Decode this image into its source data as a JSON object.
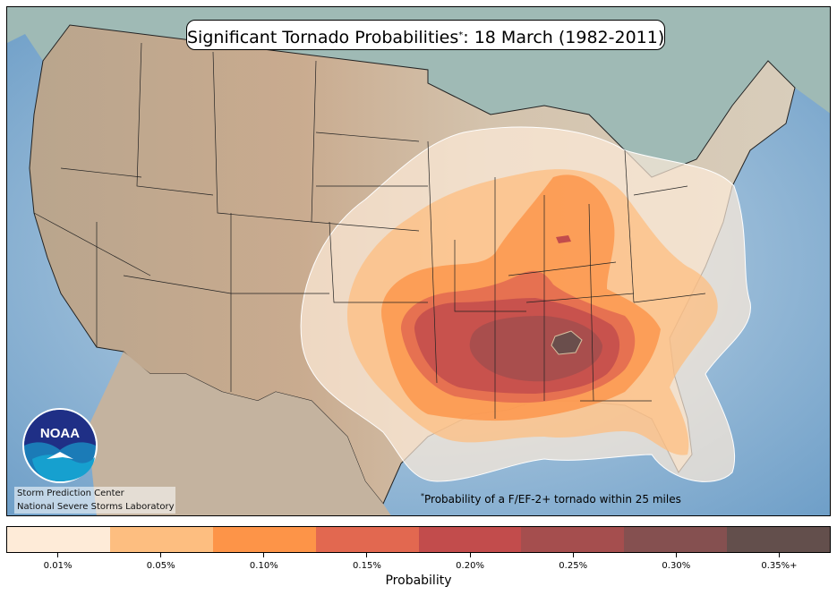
{
  "title": {
    "main": "Significant Tornado Probabilities",
    "marker": "*",
    "date_part": ": 18 March (1982-2011)"
  },
  "credits": {
    "line1": "Storm Prediction Center",
    "line2": "National Severe Storms Laboratory"
  },
  "logo": {
    "text": "NOAA",
    "icon": "noaa-logo"
  },
  "footnote": {
    "marker": "*",
    "text": "Probability of a F/EF-2+ tornado within 25 miles"
  },
  "colorbar": {
    "label": "Probability",
    "levels": [
      {
        "label": "0.01%",
        "color": "#feebd8"
      },
      {
        "label": "0.05%",
        "color": "#fdbe80"
      },
      {
        "label": "0.10%",
        "color": "#fd9448"
      },
      {
        "label": "0.15%",
        "color": "#e26850"
      },
      {
        "label": "0.20%",
        "color": "#c24c4c"
      },
      {
        "label": "0.25%",
        "color": "#a54e4e"
      },
      {
        "label": "0.30%",
        "color": "#855050"
      },
      {
        "label": "0.35%+",
        "color": "#634f4c"
      }
    ]
  },
  "colors": {
    "ocean": "#9fc6de",
    "land": "#c7ab8e",
    "canada": "#9fbab5",
    "border": "#000000"
  }
}
